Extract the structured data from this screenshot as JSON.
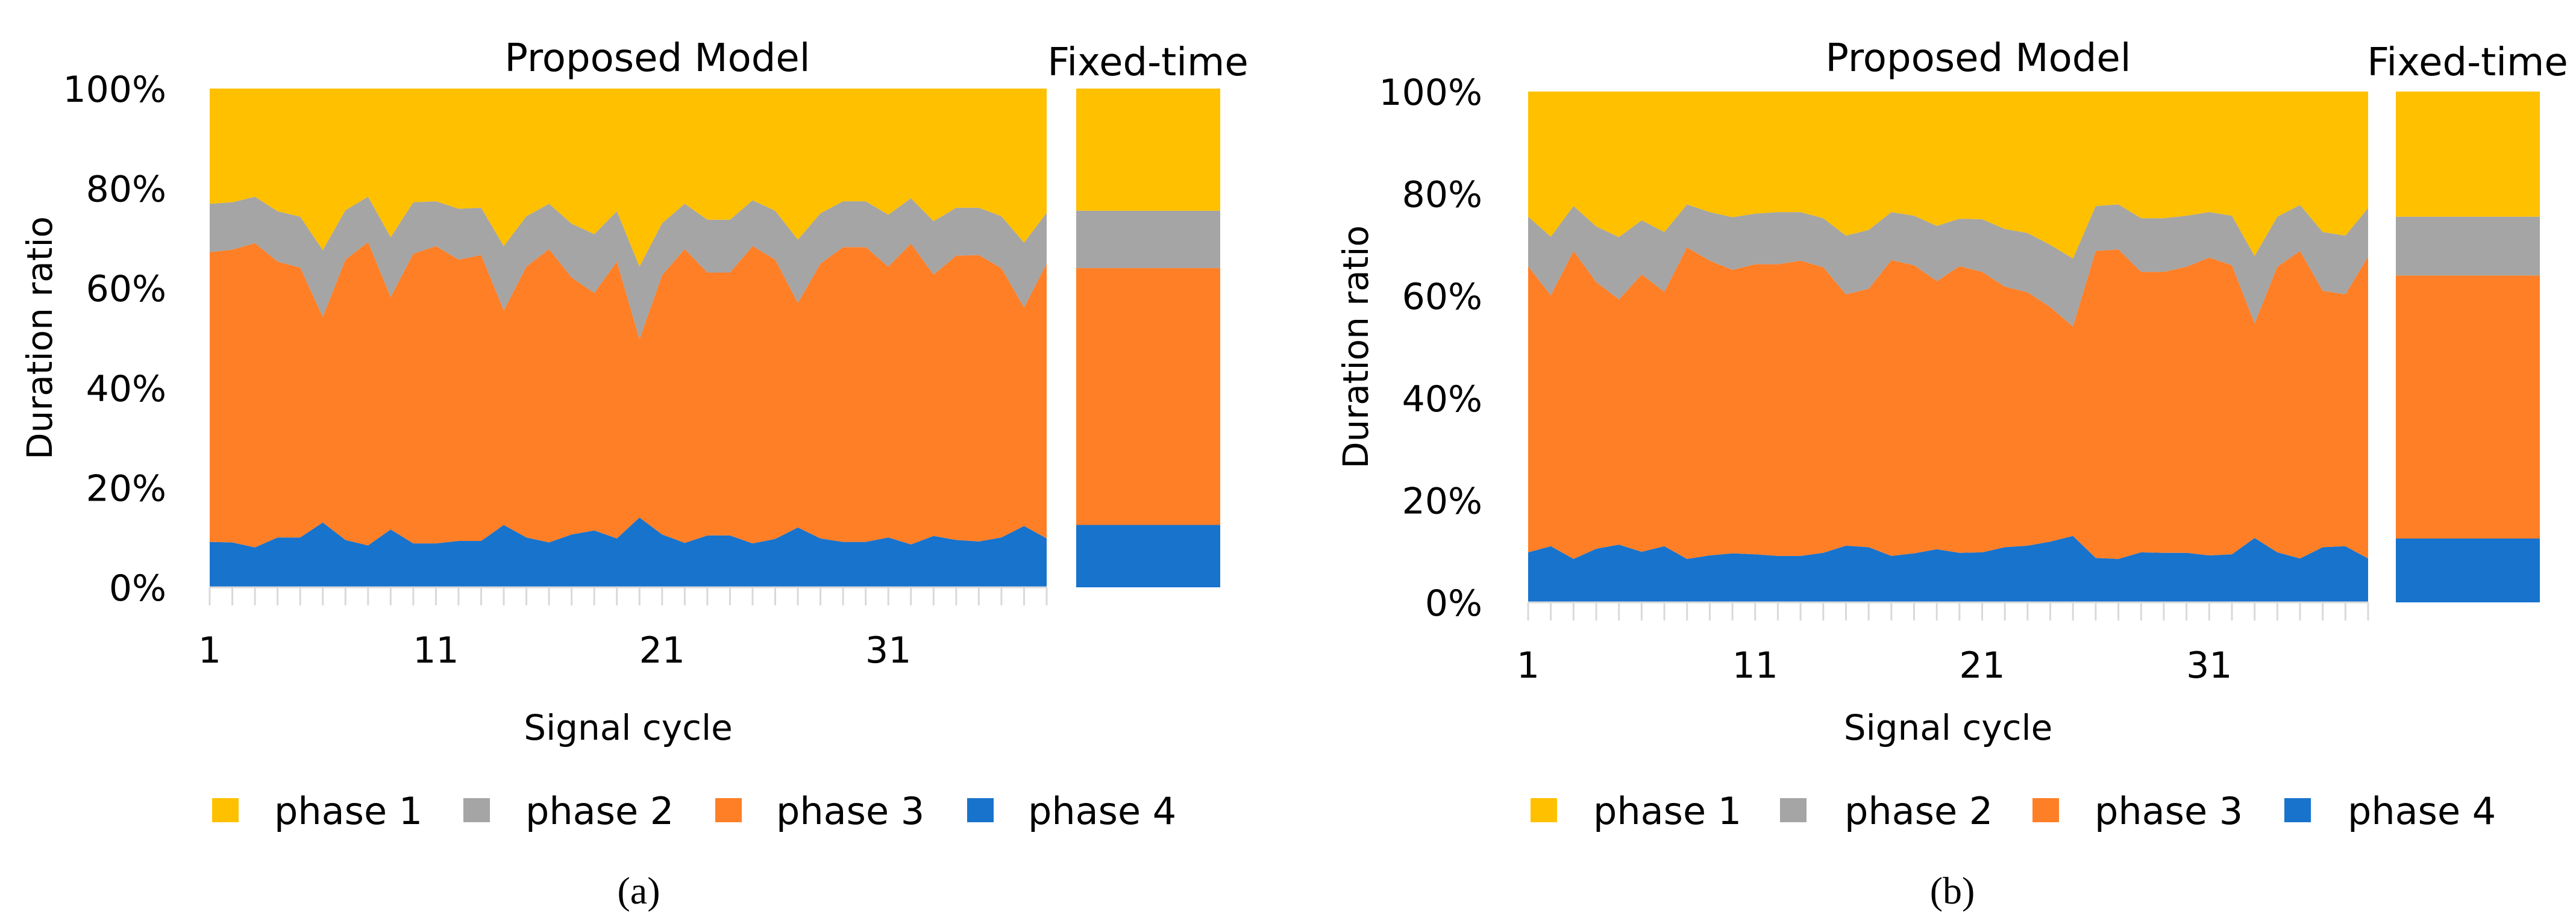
{
  "colors": {
    "phase 1": "#FFC000",
    "phase 2": "#A5A5A5",
    "phase 3": "#FF7F27",
    "phase 4": "#1873CC"
  },
  "chart_data": [
    {
      "type": "area",
      "stacked": "percent",
      "panel_label": "(a)",
      "title": "Proposed Model",
      "xlabel": "Signal cycle",
      "ylabel": "Duration ratio",
      "ylim": [
        0,
        100
      ],
      "yticks": [
        "0%",
        "20%",
        "40%",
        "60%",
        "80%",
        "100%"
      ],
      "xticks": [
        "1",
        "11",
        "21",
        "31"
      ],
      "x": [
        1,
        2,
        3,
        4,
        5,
        6,
        7,
        8,
        9,
        10,
        11,
        12,
        13,
        14,
        15,
        16,
        17,
        18,
        19,
        20,
        21,
        22,
        23,
        24,
        25,
        26,
        27,
        28,
        29,
        30,
        31,
        32,
        33,
        34,
        35,
        36,
        37,
        38
      ],
      "legend": "bottom",
      "series": [
        {
          "name": "phase 1",
          "values": [
            23.1,
            22.8,
            21.7,
            24.6,
            25.7,
            32.4,
            24.4,
            21.7,
            29.8,
            22.8,
            22.6,
            24.1,
            23.9,
            31.6,
            25.6,
            23.1,
            27.1,
            29.2,
            24.6,
            35.7,
            27.0,
            23.1,
            26.3,
            26.3,
            22.4,
            24.5,
            30.3,
            25.0,
            22.6,
            22.6,
            25.3,
            22.0,
            26.6,
            23.9,
            23.9,
            25.6,
            30.9,
            24.9
          ]
        },
        {
          "name": "phase 2",
          "values": [
            9.7,
            9.5,
            9.3,
            10.1,
            10.2,
            13.4,
            9.9,
            9.1,
            12.0,
            10.3,
            9.0,
            10.2,
            9.5,
            12.9,
            10.1,
            9.1,
            10.8,
            11.8,
            10.1,
            14.6,
            10.4,
            9.1,
            10.6,
            10.6,
            9.2,
            9.8,
            12.7,
            10.1,
            9.2,
            9.2,
            10.4,
            9.1,
            10.7,
            9.6,
            9.5,
            10.4,
            13.0,
            10.2
          ]
        },
        {
          "name": "phase 3",
          "values": [
            58.1,
            58.7,
            61.0,
            55.3,
            54.1,
            41.2,
            56.2,
            60.8,
            46.6,
            58.1,
            59.6,
            56.4,
            57.3,
            43.0,
            54.3,
            58.8,
            51.5,
            47.6,
            55.5,
            35.7,
            52.0,
            58.9,
            52.7,
            52.7,
            59.6,
            56.0,
            45.0,
            55.1,
            59.1,
            59.1,
            54.3,
            60.3,
            52.4,
            57.0,
            57.4,
            54.0,
            43.8,
            55.1
          ]
        },
        {
          "name": "phase 4",
          "values": [
            9.1,
            9.0,
            8.0,
            10.0,
            10.0,
            13.0,
            9.5,
            8.4,
            11.6,
            8.8,
            8.8,
            9.3,
            9.3,
            12.5,
            10.0,
            9.0,
            10.6,
            11.4,
            9.8,
            14.0,
            10.6,
            8.9,
            10.4,
            10.4,
            8.8,
            9.7,
            12.0,
            9.8,
            9.1,
            9.1,
            10.0,
            8.6,
            10.3,
            9.5,
            9.2,
            10.0,
            12.3,
            9.8
          ]
        }
      ],
      "fixed_time": {
        "title": "Fixed-time",
        "values": {
          "phase 1": 24.5,
          "phase 2": 11.5,
          "phase 3": 51.5,
          "phase 4": 12.5
        }
      }
    },
    {
      "type": "area",
      "stacked": "percent",
      "panel_label": "(b)",
      "title": "Proposed Model",
      "xlabel": "Signal cycle",
      "ylabel": "Duration ratio",
      "ylim": [
        0,
        100
      ],
      "yticks": [
        "0%",
        "20%",
        "40%",
        "60%",
        "80%",
        "100%"
      ],
      "xticks": [
        "1",
        "11",
        "21",
        "31"
      ],
      "x": [
        1,
        2,
        3,
        4,
        5,
        6,
        7,
        8,
        9,
        10,
        11,
        12,
        13,
        14,
        15,
        16,
        17,
        18,
        19,
        20,
        21,
        22,
        23,
        24,
        25,
        26,
        27,
        28,
        29,
        30,
        31,
        32,
        33,
        34,
        35,
        36,
        37,
        38
      ],
      "legend": "bottom",
      "series": [
        {
          "name": "phase 1",
          "values": [
            24.5,
            28.4,
            22.4,
            26.4,
            28.5,
            25.2,
            27.5,
            22.1,
            23.6,
            24.6,
            23.9,
            23.6,
            23.6,
            24.8,
            28.2,
            27.1,
            23.6,
            24.3,
            26.3,
            24.9,
            25.0,
            26.9,
            27.7,
            30.0,
            32.7,
            22.4,
            22.1,
            24.8,
            24.8,
            24.3,
            23.6,
            24.3,
            32.2,
            24.5,
            22.2,
            27.5,
            28.2,
            22.8
          ]
        },
        {
          "name": "phase 2",
          "values": [
            9.7,
            11.5,
            8.8,
            10.9,
            12.2,
            10.6,
            11.7,
            8.4,
            9.5,
            10.3,
            9.9,
            10.2,
            9.5,
            9.6,
            11.5,
            11.5,
            9.4,
            9.7,
            10.8,
            9.3,
            10.3,
            11.3,
            11.6,
            12.2,
            13.3,
            8.8,
            8.8,
            10.5,
            10.5,
            10.0,
            8.9,
            9.7,
            13.2,
            9.8,
            9.0,
            11.5,
            11.5,
            9.5
          ]
        },
        {
          "name": "phase 3",
          "values": [
            56.0,
            49.1,
            60.3,
            52.2,
            48.0,
            54.3,
            49.8,
            61.0,
            57.7,
            55.5,
            56.8,
            57.1,
            57.8,
            55.9,
            49.2,
            50.6,
            57.9,
            56.4,
            52.5,
            56.1,
            54.9,
            51.0,
            49.6,
            45.9,
            41.0,
            60.1,
            60.6,
            54.9,
            55.0,
            56.0,
            58.3,
            56.6,
            42.0,
            55.9,
            60.2,
            50.2,
            49.3,
            59.1
          ]
        },
        {
          "name": "phase 4",
          "values": [
            9.8,
            11.0,
            8.5,
            10.5,
            11.3,
            9.9,
            11.0,
            8.5,
            9.2,
            9.6,
            9.4,
            9.1,
            9.1,
            9.7,
            11.1,
            10.8,
            9.1,
            9.6,
            10.4,
            9.7,
            9.8,
            10.8,
            11.1,
            11.9,
            13.0,
            8.7,
            8.5,
            9.8,
            9.7,
            9.7,
            9.2,
            9.4,
            12.6,
            9.8,
            8.6,
            10.8,
            11.0,
            8.6
          ]
        }
      ],
      "fixed_time": {
        "title": "Fixed-time",
        "values": {
          "phase 1": 24.5,
          "phase 2": 11.5,
          "phase 3": 51.5,
          "phase 4": 12.5
        }
      }
    }
  ]
}
